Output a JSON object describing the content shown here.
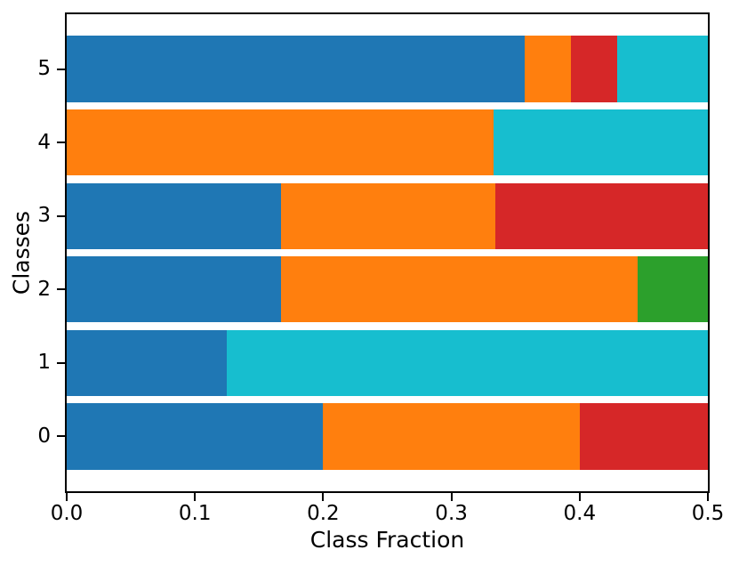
{
  "figure": {
    "background": "#ffffff",
    "spine_color": "#000000",
    "tick_color": "#000000",
    "text_color": "#000000"
  },
  "chart_data": {
    "type": "bar",
    "orientation": "horizontal",
    "stacked": true,
    "title": "",
    "xlabel": "Class Fraction",
    "ylabel": "Classes",
    "xlim": [
      0.0,
      0.5
    ],
    "ylim": [
      -0.745,
      5.745
    ],
    "bar_height": 0.9,
    "grid": false,
    "legend_position": "none",
    "xticks": [
      {
        "value": 0.0,
        "label": "0.0"
      },
      {
        "value": 0.1,
        "label": "0.1"
      },
      {
        "value": 0.2,
        "label": "0.2"
      },
      {
        "value": 0.3,
        "label": "0.3"
      },
      {
        "value": 0.4,
        "label": "0.4"
      },
      {
        "value": 0.5,
        "label": "0.5"
      }
    ],
    "categories": [
      "0",
      "1",
      "2",
      "3",
      "4",
      "5"
    ],
    "palette": {
      "blue": "#1f77b4",
      "orange": "#ff7f0e",
      "red": "#d62728",
      "green": "#2ca02c",
      "cyan": "#17becf"
    },
    "rows": [
      {
        "category": "0",
        "segments": [
          {
            "color": "blue",
            "value": 0.2
          },
          {
            "color": "orange",
            "value": 0.2
          },
          {
            "color": "red",
            "value": 0.1
          }
        ]
      },
      {
        "category": "1",
        "segments": [
          {
            "color": "blue",
            "value": 0.125
          },
          {
            "color": "cyan",
            "value": 0.375
          }
        ]
      },
      {
        "category": "2",
        "segments": [
          {
            "color": "blue",
            "value": 0.167
          },
          {
            "color": "orange",
            "value": 0.278
          },
          {
            "color": "green",
            "value": 0.055
          }
        ]
      },
      {
        "category": "3",
        "segments": [
          {
            "color": "blue",
            "value": 0.167
          },
          {
            "color": "orange",
            "value": 0.167
          },
          {
            "color": "red",
            "value": 0.166
          }
        ]
      },
      {
        "category": "4",
        "segments": [
          {
            "color": "orange",
            "value": 0.333
          },
          {
            "color": "cyan",
            "value": 0.167
          }
        ]
      },
      {
        "category": "5",
        "segments": [
          {
            "color": "blue",
            "value": 0.357
          },
          {
            "color": "orange",
            "value": 0.036
          },
          {
            "color": "red",
            "value": 0.036
          },
          {
            "color": "cyan",
            "value": 0.071
          }
        ]
      }
    ]
  }
}
